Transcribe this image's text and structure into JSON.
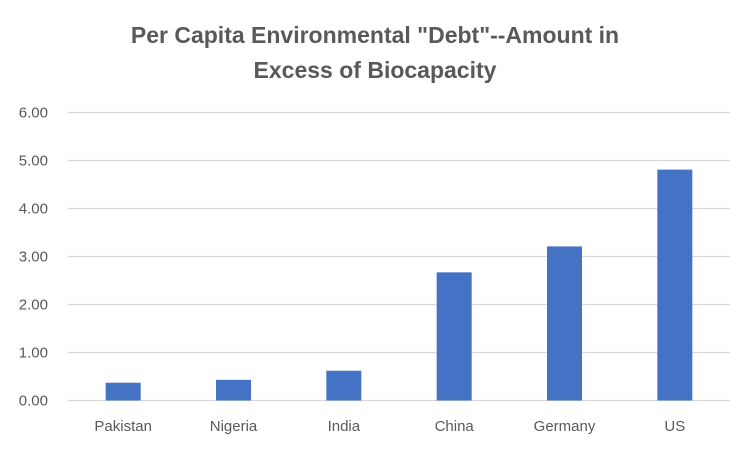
{
  "chart_data": {
    "type": "bar",
    "title": [
      "Per Capita Environmental \"Debt\"--Amount in",
      "Excess of Biocapacity"
    ],
    "categories": [
      "Pakistan",
      "Nigeria",
      "India",
      "China",
      "Germany",
      "US"
    ],
    "values": [
      0.37,
      0.43,
      0.62,
      2.67,
      3.21,
      4.81
    ],
    "xlabel": "",
    "ylabel": "",
    "ylim": [
      0,
      6
    ],
    "yticks": [
      "0.00",
      "1.00",
      "2.00",
      "3.00",
      "4.00",
      "5.00",
      "6.00"
    ],
    "grid": true,
    "legend": "none",
    "bar_color": "#4472C4",
    "grid_color": "#D9D9D9"
  }
}
